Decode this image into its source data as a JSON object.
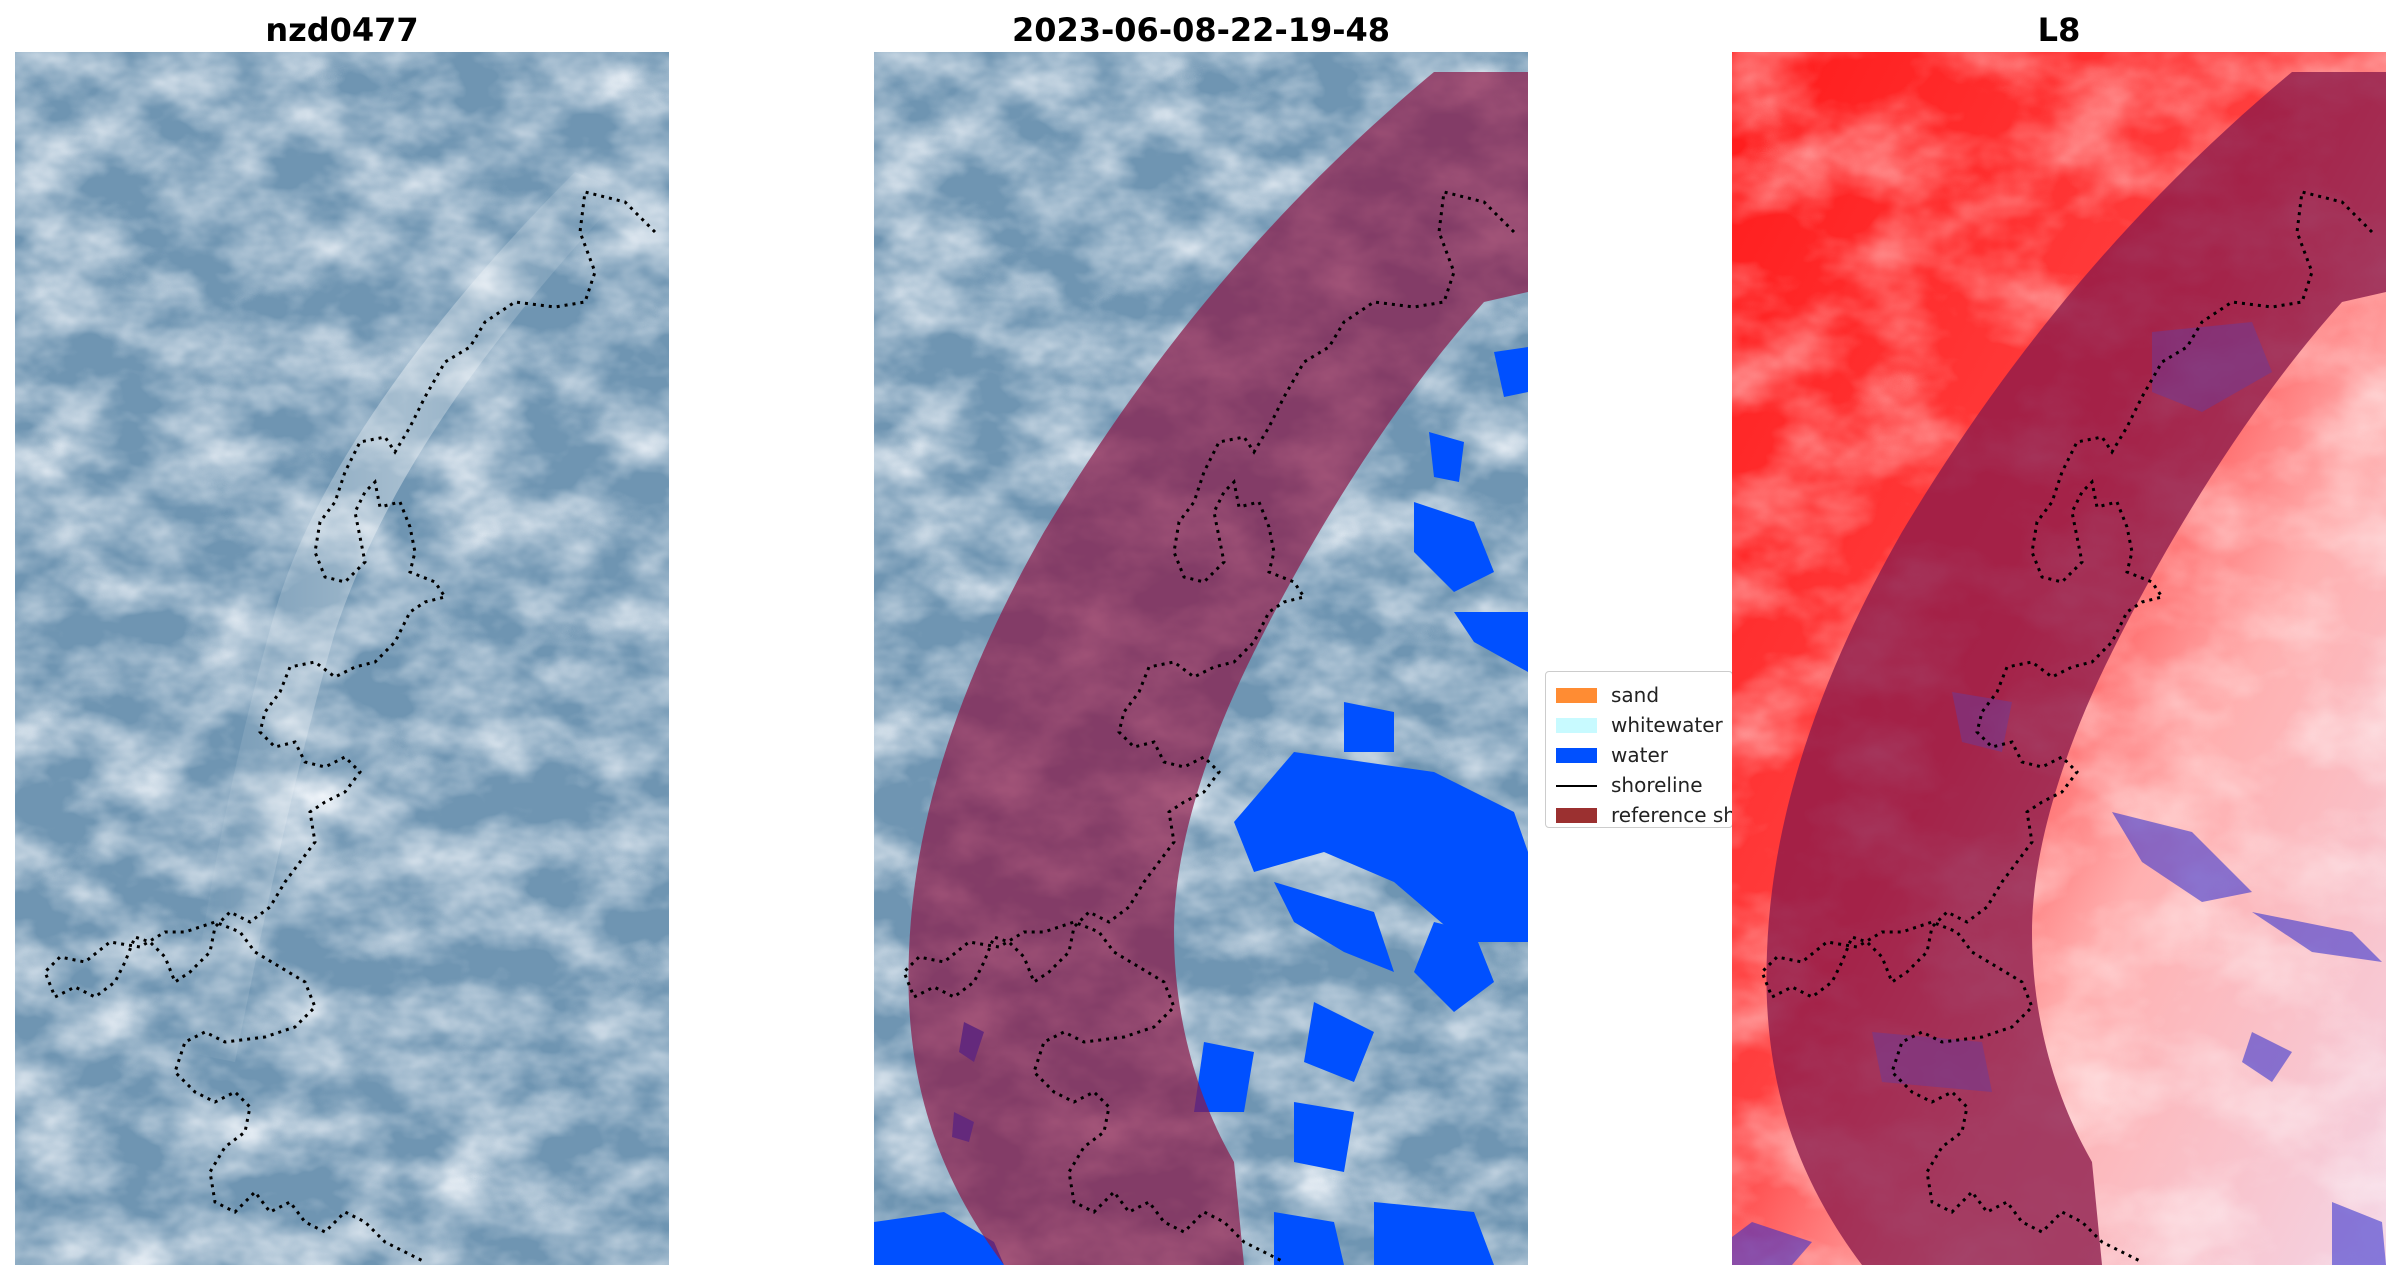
{
  "panels": [
    {
      "title": "nzd0477"
    },
    {
      "title": "2023-06-08-22-19-48"
    },
    {
      "title": "L8"
    }
  ],
  "legend": {
    "items": [
      {
        "label": "sand",
        "color": "#ff8c33",
        "kind": "patch"
      },
      {
        "label": "whitewater",
        "color": "#c8faff",
        "kind": "patch"
      },
      {
        "label": "water",
        "color": "#0050ff",
        "kind": "patch"
      },
      {
        "label": "shoreline",
        "color": "#000000",
        "kind": "line"
      },
      {
        "label": "reference shoreline buffer",
        "color": "#9b3030",
        "kind": "patch"
      }
    ]
  },
  "colors": {
    "buffer_overlay": "#8b1a4a",
    "water_class": "#0050ff",
    "ndwi_red": "#ff2020",
    "ndwi_blue": "#2a2ad0"
  }
}
